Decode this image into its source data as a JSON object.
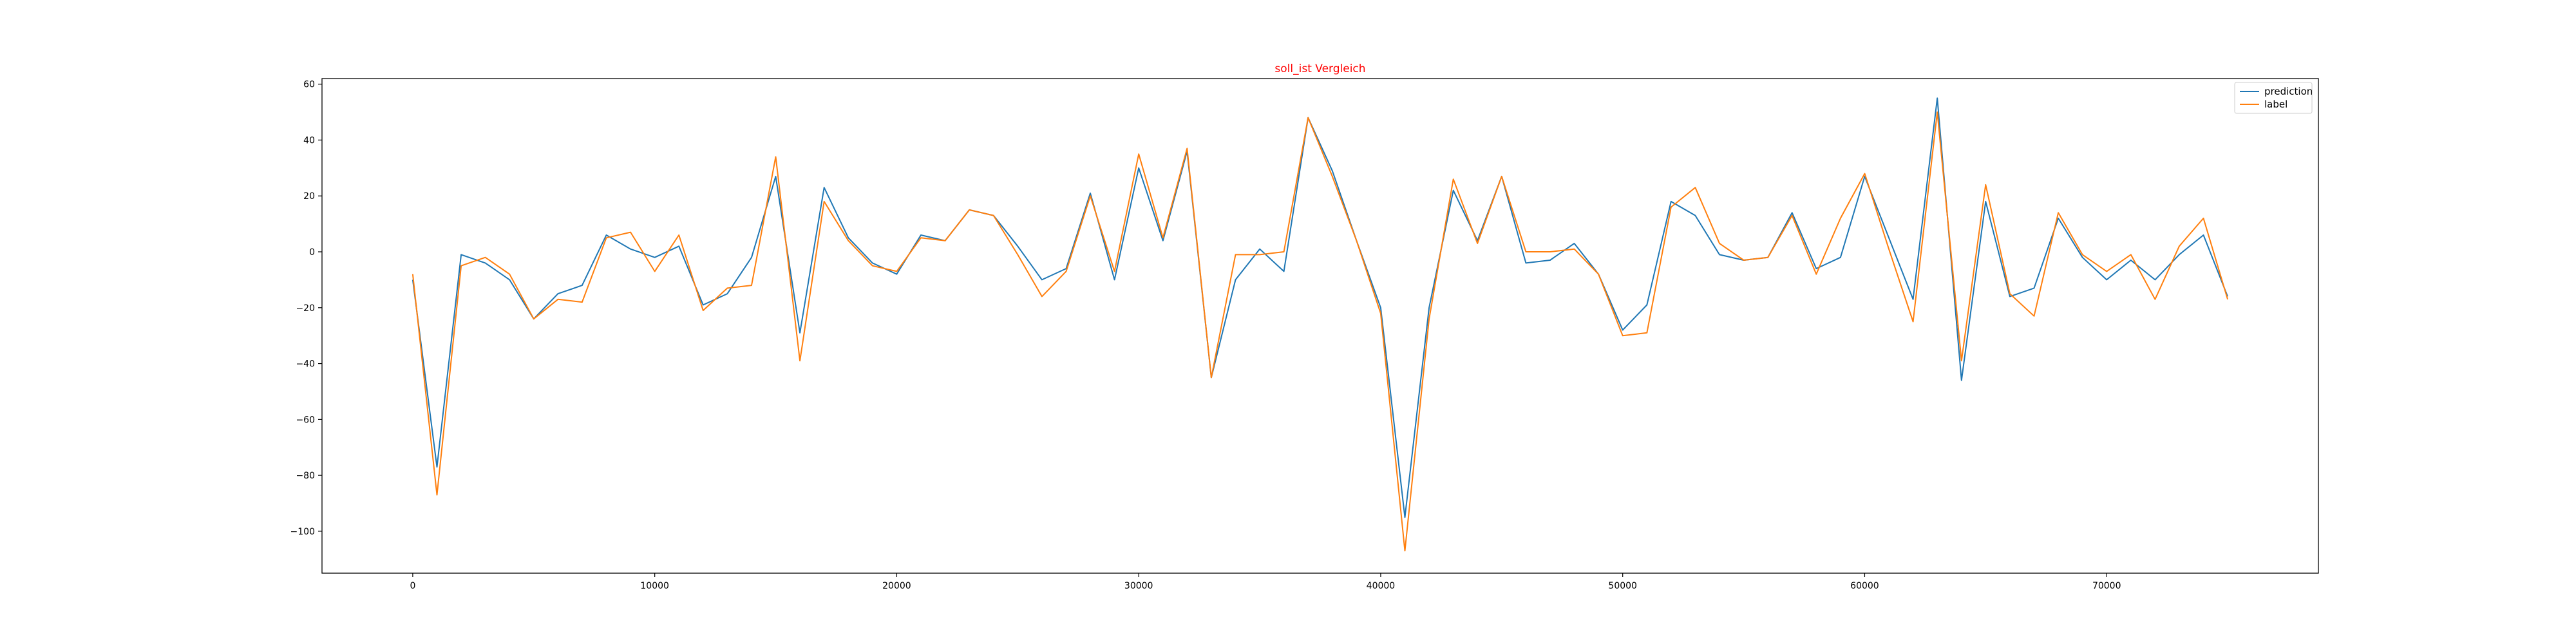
{
  "chart_data": {
    "type": "line",
    "title": "soll_ist Vergleich",
    "xlabel": "",
    "ylabel": "",
    "xlim": [
      -3750,
      78750
    ],
    "ylim": [
      -115,
      62
    ],
    "x_ticks": [
      0,
      10000,
      20000,
      30000,
      40000,
      50000,
      60000,
      70000
    ],
    "x_tick_labels": [
      "0",
      "10000",
      "20000",
      "30000",
      "40000",
      "50000",
      "60000",
      "70000"
    ],
    "y_ticks": [
      -100,
      -80,
      -60,
      -40,
      -20,
      0,
      20,
      40,
      60
    ],
    "y_tick_labels": [
      "−100",
      "−80",
      "−60",
      "−40",
      "−20",
      "0",
      "20",
      "40",
      "60"
    ],
    "grid": false,
    "legend_position": "top-right",
    "colors": {
      "prediction": "#1f77b4",
      "label": "#ff7f0e",
      "title": "#ff0000"
    },
    "x": [
      0,
      1000,
      2000,
      3000,
      4000,
      5000,
      6000,
      7000,
      8000,
      9000,
      10000,
      11000,
      12000,
      13000,
      14000,
      15000,
      16000,
      17000,
      18000,
      19000,
      20000,
      21000,
      22000,
      23000,
      24000,
      25000,
      26000,
      27000,
      28000,
      29000,
      30000,
      31000,
      32000,
      33000,
      34000,
      35000,
      36000,
      37000,
      38000,
      39000,
      40000,
      41000,
      42000,
      43000,
      44000,
      45000,
      46000,
      47000,
      48000,
      49000,
      50000,
      51000,
      52000,
      53000,
      54000,
      55000,
      56000,
      57000,
      58000,
      59000,
      60000,
      61000,
      62000,
      63000,
      64000,
      65000,
      66000,
      67000,
      68000,
      69000,
      70000,
      71000,
      72000,
      73000,
      74000,
      75000
    ],
    "series": [
      {
        "name": "prediction",
        "values": [
          -10,
          -77,
          -1,
          -4,
          -10,
          -24,
          -15,
          -12,
          6,
          1,
          -2,
          2,
          -19,
          -15,
          -2,
          27,
          -29,
          23,
          5,
          -4,
          -8,
          6,
          4,
          15,
          13,
          2,
          -10,
          -6,
          21,
          -10,
          30,
          4,
          36,
          -45,
          -10,
          1,
          -7,
          48,
          29,
          4,
          -20,
          -95,
          -20,
          22,
          4,
          27,
          -4,
          -3,
          3,
          -8,
          -28,
          -19,
          18,
          13,
          -1,
          -3,
          -2,
          14,
          -6,
          -2,
          27,
          5,
          -17,
          55,
          -46,
          18,
          -16,
          -13,
          12,
          -2,
          -10,
          -3,
          -10,
          -1,
          6,
          -16
        ]
      },
      {
        "name": "label",
        "values": [
          -8,
          -87,
          -5,
          -2,
          -8,
          -24,
          -17,
          -18,
          5,
          7,
          -7,
          6,
          -21,
          -13,
          -12,
          34,
          -39,
          18,
          4,
          -5,
          -7,
          5,
          4,
          15,
          13,
          -1,
          -16,
          -7,
          20,
          -7,
          35,
          5,
          37,
          -45,
          -1,
          -1,
          0,
          48,
          27,
          4,
          -22,
          -107,
          -24,
          26,
          3,
          27,
          0,
          0,
          1,
          -8,
          -30,
          -29,
          16,
          23,
          3,
          -3,
          -2,
          13,
          -8,
          12,
          28,
          1,
          -25,
          50,
          -39,
          24,
          -15,
          -23,
          14,
          -1,
          -7,
          -1,
          -17,
          2,
          12,
          -17
        ]
      }
    ]
  }
}
